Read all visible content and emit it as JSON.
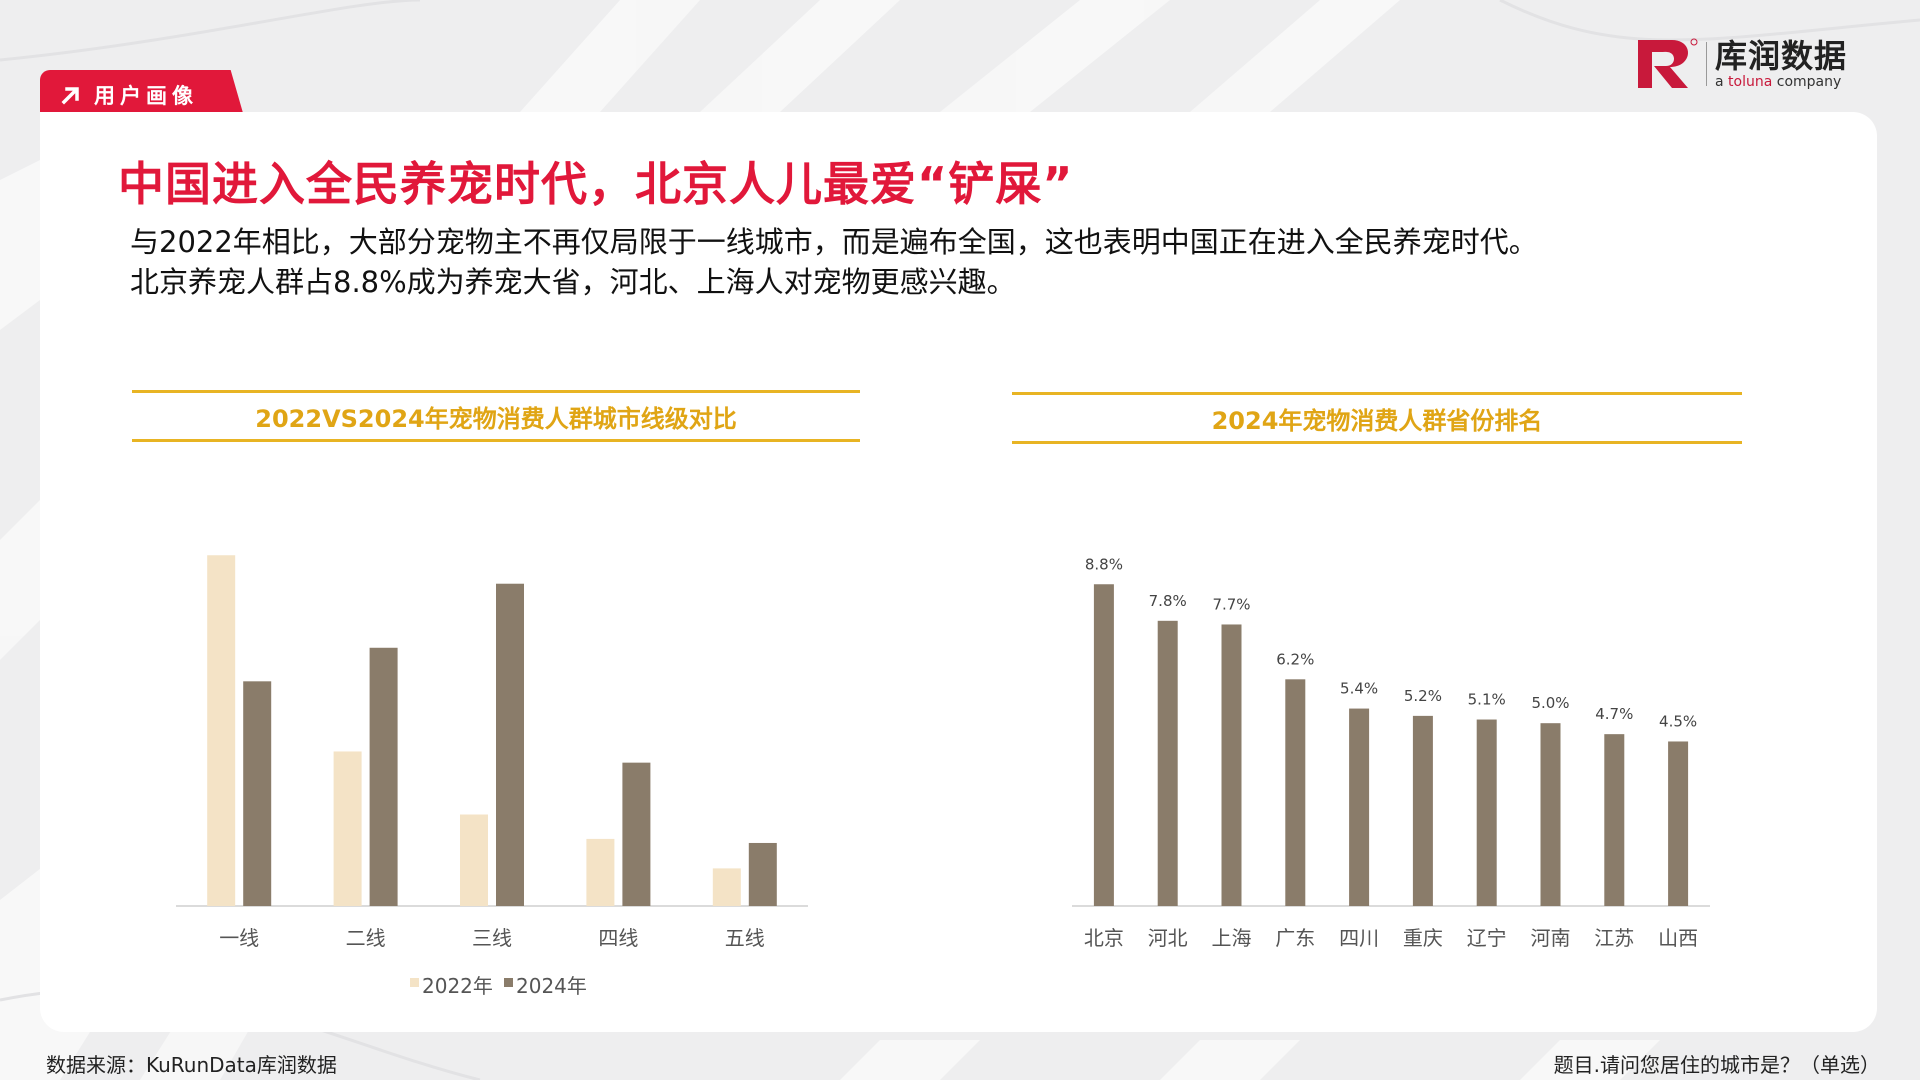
{
  "header": {
    "tab_label": "用户画像",
    "logo_main": "库润数据",
    "logo_sub_prefix": "a ",
    "logo_sub_accent": "toluna",
    "logo_sub_suffix": " company"
  },
  "main": {
    "title": "中国进入全民养宠时代，北京人儿最爱“铲屎”",
    "desc_line1": "与2022年相比，大部分宠物主不再仅局限于一线城市，而是遍布全国，这也表明中国正在进入全民养宠时代。",
    "desc_line2": "北京养宠人群占8.8%成为养宠大省，河北、上海人对宠物更感兴趣。"
  },
  "colors": {
    "accent": "#e1183a",
    "heading_gold": "#e0a515",
    "bar_2022": "#f4e3c6",
    "bar_2024": "#8a7c6a",
    "axis": "#cfcfcf"
  },
  "chart_data": [
    {
      "type": "bar",
      "title": "2022VS2024年宠物消费人群城市线级对比",
      "categories": [
        "一线",
        "二线",
        "三线",
        "四线",
        "五线"
      ],
      "series": [
        {
          "name": "2022年",
          "values": [
            34.5,
            15.2,
            9.0,
            6.6,
            3.7
          ]
        },
        {
          "name": "2024年",
          "values": [
            22.1,
            25.4,
            31.7,
            14.1,
            6.2
          ]
        }
      ],
      "ylim": [
        0,
        36
      ],
      "legend": "bottom",
      "grid": false
    },
    {
      "type": "bar",
      "title": "2024年宠物消费人群省份排名",
      "categories": [
        "北京",
        "河北",
        "上海",
        "广东",
        "四川",
        "重庆",
        "辽宁",
        "河南",
        "江苏",
        "山西"
      ],
      "values": [
        8.8,
        7.8,
        7.7,
        6.2,
        5.4,
        5.2,
        5.1,
        5.0,
        4.7,
        4.5
      ],
      "labels": [
        "8.8%",
        "7.8%",
        "7.7%",
        "6.2%",
        "5.4%",
        "5.2%",
        "5.1%",
        "5.0%",
        "4.7%",
        "4.5%"
      ],
      "ylim": [
        0,
        9.6
      ],
      "grid": false
    }
  ],
  "footer": {
    "source": "数据来源：KuRunData库润数据",
    "question": "题目.请问您居住的城市是？（单选）"
  }
}
